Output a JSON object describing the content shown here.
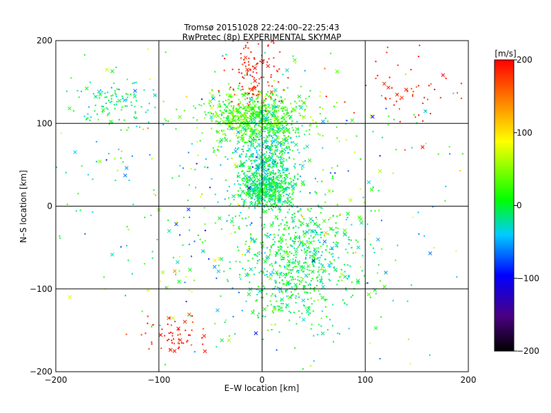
{
  "chart_data": {
    "type": "scatter",
    "title": "Tromsø 20151028 22:24:00–22:25:43",
    "subtitle": "RwPretec (8p) EXPERIMENTAL SKYMAP",
    "xlabel": "E–W location [km]",
    "ylabel": "N–S location [km]",
    "xlim": [
      -200,
      200
    ],
    "ylim": [
      -200,
      200
    ],
    "xticks": [
      "−200",
      "−100",
      "0",
      "100",
      "200"
    ],
    "yticks": [
      "−200",
      "−100",
      "0",
      "100",
      "200"
    ],
    "grid": true,
    "colorbar": {
      "label": "[m/s]",
      "range": [
        -200,
        200
      ],
      "ticks": [
        "−200",
        "−100",
        "0",
        "100",
        "200"
      ],
      "colors": [
        "#000000",
        "#4b0082",
        "#0000ff",
        "#00ccff",
        "#00ff00",
        "#ffff00",
        "#ff8000",
        "#ff0000"
      ]
    },
    "clusters": [
      {
        "region": "north-central",
        "cx": -5,
        "cy": 108,
        "sx": 25,
        "sy": 15,
        "n": 650,
        "vmean": 20,
        "vsd": 25
      },
      {
        "region": "north spike",
        "cx": -8,
        "cy": 160,
        "sx": 12,
        "sy": 22,
        "n": 120,
        "vmean": 190,
        "vsd": 10
      },
      {
        "region": "central column",
        "cx": 5,
        "cy": 60,
        "sx": 15,
        "sy": 30,
        "n": 500,
        "vmean": -20,
        "vsd": 20
      },
      {
        "region": "center",
        "cx": 5,
        "cy": 22,
        "sx": 12,
        "sy": 12,
        "n": 400,
        "vmean": -10,
        "vsd": 15
      },
      {
        "region": "south-central",
        "cx": 35,
        "cy": -65,
        "sx": 30,
        "sy": 40,
        "n": 700,
        "vmean": -10,
        "vsd": 20
      },
      {
        "region": "southwest arc",
        "cx": -85,
        "cy": -155,
        "sx": 20,
        "sy": 10,
        "n": 60,
        "vmean": 190,
        "vsd": 15
      },
      {
        "region": "northeast",
        "cx": 145,
        "cy": 140,
        "sx": 30,
        "sy": 20,
        "n": 60,
        "vmean": 190,
        "vsd": 15
      },
      {
        "region": "northwest",
        "cx": -140,
        "cy": 125,
        "sx": 20,
        "sy": 15,
        "n": 110,
        "vmean": -20,
        "vsd": 20
      },
      {
        "region": "scatter",
        "cx": 0,
        "cy": 0,
        "sx": 90,
        "sy": 90,
        "n": 500,
        "vmean": 0,
        "vsd": 50
      }
    ]
  }
}
